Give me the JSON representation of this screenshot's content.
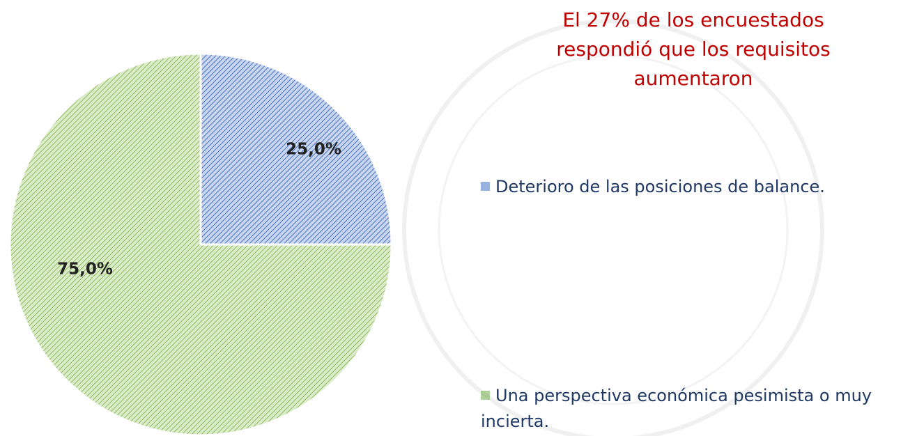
{
  "chart_data": {
    "type": "pie",
    "title": "El 27%  de los encuestados respondió que los requisitos aumentaron",
    "categories": [
      "Deterioro de las posiciones de balance.",
      "Una perspectiva económica pesimista o muy incierta."
    ],
    "values": [
      25,
      75
    ],
    "value_labels": [
      "25,0%",
      "75,0%"
    ],
    "colors": [
      "#4472c4",
      "#70ad47"
    ],
    "legend": "right"
  }
}
